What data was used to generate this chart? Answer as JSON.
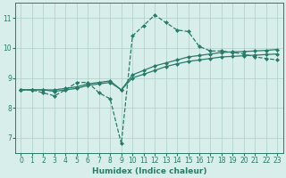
{
  "xlabel": "Humidex (Indice chaleur)",
  "xlim": [
    -0.5,
    23.5
  ],
  "ylim": [
    6.5,
    11.5
  ],
  "xticks": [
    0,
    1,
    2,
    3,
    4,
    5,
    6,
    7,
    8,
    9,
    10,
    11,
    12,
    13,
    14,
    15,
    16,
    17,
    18,
    19,
    20,
    21,
    22,
    23
  ],
  "yticks": [
    7,
    8,
    9,
    10,
    11
  ],
  "bg_color": "#d8eeea",
  "line_color": "#2a7a6a",
  "grid_color": "#aecdc7",
  "lines": [
    {
      "x": [
        0,
        1,
        2,
        3,
        4,
        5,
        6,
        7,
        8,
        9,
        10,
        11,
        12,
        13,
        14,
        15,
        16,
        17,
        18,
        19,
        20,
        21,
        22,
        23
      ],
      "y": [
        8.6,
        8.6,
        8.5,
        8.4,
        8.6,
        8.85,
        8.85,
        8.5,
        8.3,
        6.8,
        10.4,
        10.75,
        11.1,
        10.85,
        10.6,
        10.55,
        10.05,
        9.9,
        9.9,
        9.85,
        9.8,
        9.7,
        9.65,
        9.6
      ],
      "linestyle": "--",
      "marker": "D",
      "markersize": 2.0,
      "linewidth": 0.9
    },
    {
      "x": [
        0,
        1,
        2,
        3,
        4,
        5,
        6,
        7,
        8,
        9,
        10,
        11,
        12,
        13,
        14,
        15,
        16,
        17,
        18,
        19,
        20,
        21,
        22,
        23
      ],
      "y": [
        8.6,
        8.6,
        8.6,
        8.6,
        8.65,
        8.7,
        8.8,
        8.85,
        8.9,
        8.6,
        9.1,
        9.25,
        9.4,
        9.5,
        9.6,
        9.7,
        9.75,
        9.8,
        9.85,
        9.87,
        9.88,
        9.9,
        9.92,
        9.95
      ],
      "linestyle": "-",
      "marker": "D",
      "markersize": 2.0,
      "linewidth": 0.9
    },
    {
      "x": [
        0,
        1,
        2,
        3,
        4,
        5,
        6,
        7,
        8,
        9,
        10,
        11,
        12,
        13,
        14,
        15,
        16,
        17,
        18,
        19,
        20,
        21,
        22,
        23
      ],
      "y": [
        8.6,
        8.6,
        8.6,
        8.55,
        8.6,
        8.65,
        8.75,
        8.8,
        8.85,
        8.6,
        9.0,
        9.12,
        9.25,
        9.38,
        9.47,
        9.55,
        9.6,
        9.65,
        9.7,
        9.72,
        9.74,
        9.76,
        9.78,
        9.8
      ],
      "linestyle": "-",
      "marker": "D",
      "markersize": 2.0,
      "linewidth": 0.9
    }
  ]
}
